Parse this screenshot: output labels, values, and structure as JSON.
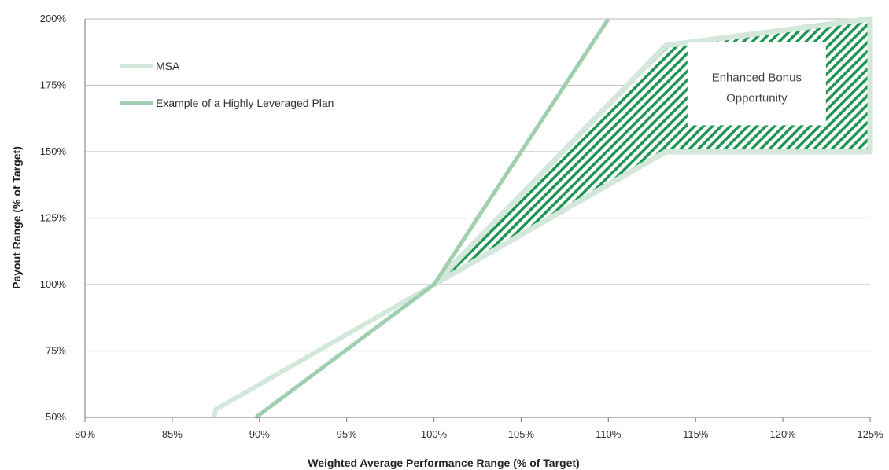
{
  "chart_data": {
    "type": "line",
    "xlabel": "Weighted Average Performance Range (% of Target)",
    "ylabel": "Payout Range (% of Target)",
    "xlim": [
      80,
      125
    ],
    "ylim": [
      50,
      200
    ],
    "x_ticks": [
      80,
      85,
      90,
      95,
      100,
      105,
      110,
      115,
      120,
      125
    ],
    "x_tick_labels": [
      "80%",
      "85%",
      "90%",
      "95%",
      "100%",
      "105%",
      "110%",
      "115%",
      "120%",
      "125%"
    ],
    "y_ticks": [
      50,
      75,
      100,
      125,
      150,
      175,
      200
    ],
    "y_tick_labels": [
      "50%",
      "75%",
      "100%",
      "125%",
      "150%",
      "175%",
      "200%"
    ],
    "grid": "horizontal",
    "legend_position": "top-left",
    "series": [
      {
        "name": "MSA",
        "color": "#d3e8da",
        "points": [
          [
            87.4,
            50
          ],
          [
            87.5,
            53
          ],
          [
            100,
            100
          ],
          [
            113.3,
            150
          ],
          [
            125,
            150
          ]
        ]
      },
      {
        "name": "Example of a Highly Leveraged Plan",
        "color": "#9fcfae",
        "points": [
          [
            89.8,
            50
          ],
          [
            100,
            100
          ],
          [
            110,
            200
          ]
        ]
      }
    ],
    "shaded_region": {
      "fill_color": "#1e9651",
      "edge_color": "#d3e8da",
      "upper_boundary": [
        [
          100,
          100
        ],
        [
          113.3,
          190
        ],
        [
          125,
          200
        ]
      ],
      "lower_boundary": [
        [
          100,
          100
        ],
        [
          113.3,
          150
        ],
        [
          125,
          150
        ]
      ]
    },
    "annotations": [
      {
        "lines": [
          "Enhanced Bonus",
          "Opportunity"
        ],
        "anchor": [
          118.5,
          170
        ]
      }
    ]
  }
}
